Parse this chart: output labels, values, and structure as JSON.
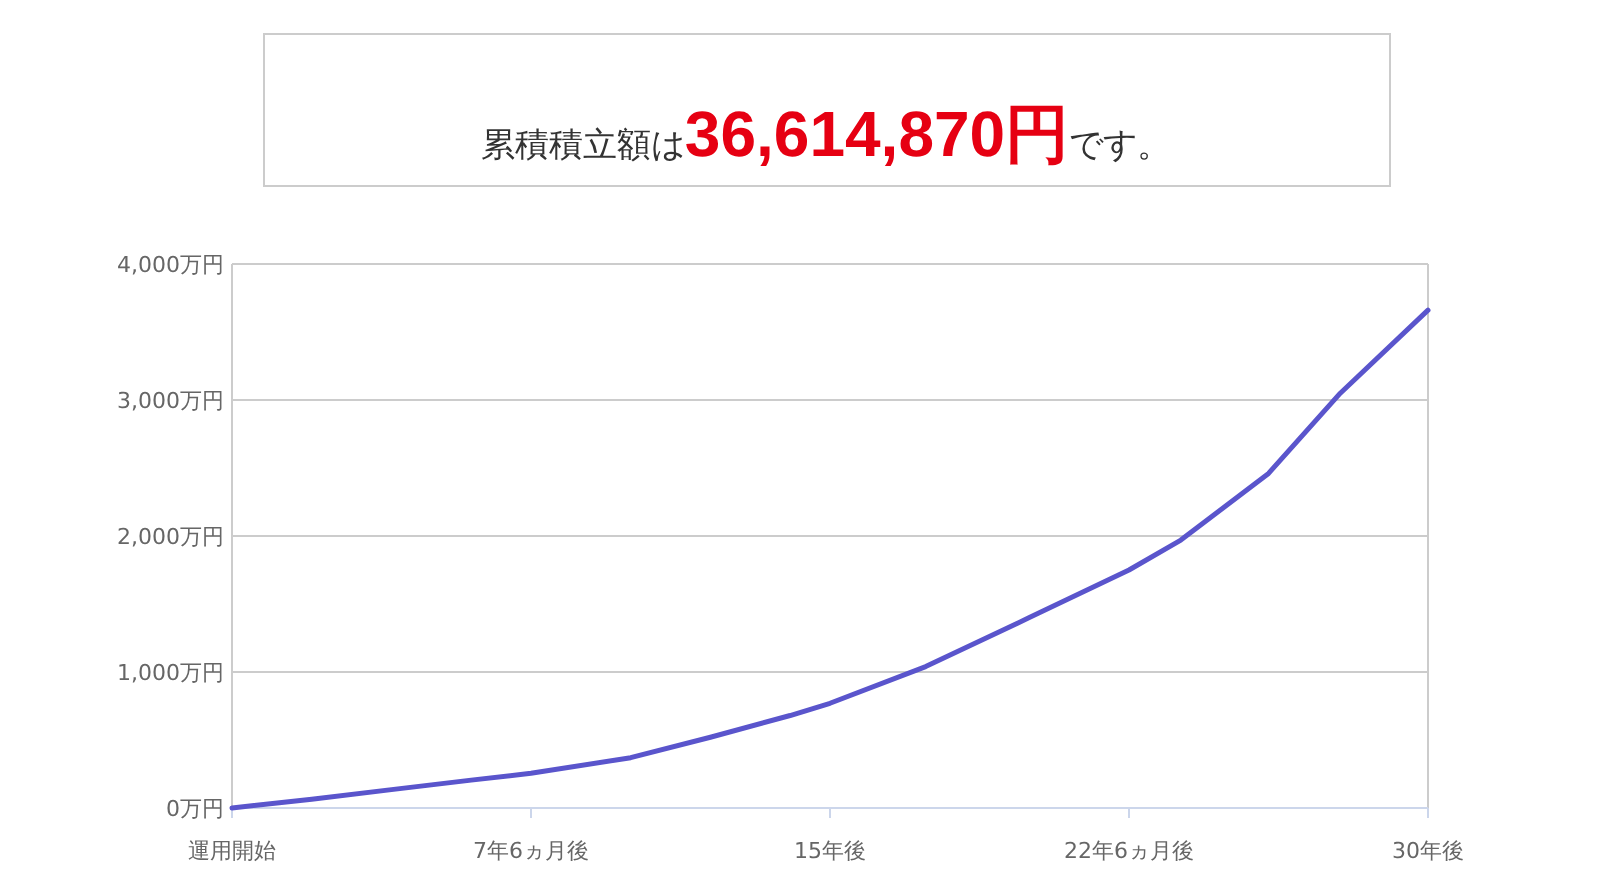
{
  "chart_data": {
    "type": "line",
    "title": "累積積立額は36,614,870円です。",
    "x": [
      0,
      2,
      4,
      6,
      7.5,
      10,
      12,
      14,
      15,
      17.4,
      20,
      22.5,
      23.8,
      26,
      27.8,
      30
    ],
    "series": [
      {
        "color": "#5a55cc",
        "values": [
          0,
          65,
          135,
          205,
          255,
          370,
          520,
          680,
          770,
          1040,
          1400,
          1750,
          1970,
          2460,
          3050,
          3661
        ]
      }
    ],
    "xlim": [
      0,
      30
    ],
    "xticks": [
      {
        "value": 0,
        "label": "運用開始"
      },
      {
        "value": 7.5,
        "label": "7年6ヵ月後"
      },
      {
        "value": 15,
        "label": "15年後"
      },
      {
        "value": 22.5,
        "label": "22年6ヵ月後"
      },
      {
        "value": 30,
        "label": "30年後"
      }
    ],
    "ylim": [
      0,
      4000
    ],
    "yticks": [
      {
        "value": 0,
        "label": "0万円"
      },
      {
        "value": 1000,
        "label": "1,000万円"
      },
      {
        "value": 2000,
        "label": "2,000万円"
      },
      {
        "value": 3000,
        "label": "3,000万円"
      },
      {
        "value": 4000,
        "label": "4,000万円"
      }
    ],
    "grid": "y",
    "marker": "none",
    "line_style": "solid"
  }
}
